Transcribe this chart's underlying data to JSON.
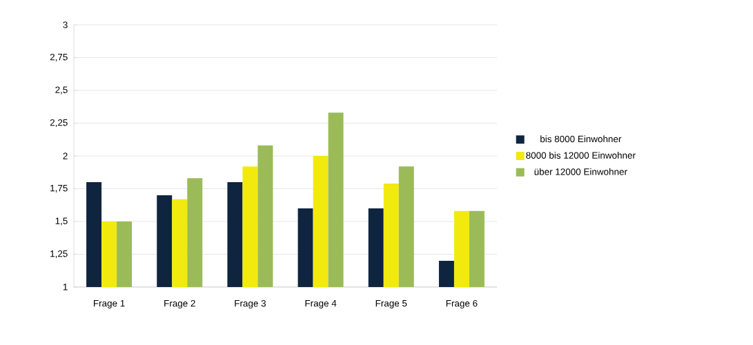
{
  "chart_data": {
    "type": "bar",
    "categories": [
      "Frage 1",
      "Frage 2",
      "Frage 3",
      "Frage 4",
      "Frage 5",
      "Frage 6"
    ],
    "series": [
      {
        "name": "bis 8000 Einwohner",
        "color": "#0f243e",
        "values": [
          1.8,
          1.7,
          1.8,
          1.6,
          1.6,
          1.2
        ]
      },
      {
        "name": "8000 bis 12000 Einwohner",
        "color": "#f2ea0f",
        "values": [
          1.5,
          1.67,
          1.92,
          2.0,
          1.79,
          1.58
        ]
      },
      {
        "name": "über 12000 Einwohner",
        "color": "#9bbb59",
        "values": [
          1.5,
          1.83,
          2.08,
          2.33,
          1.92,
          1.58
        ]
      }
    ],
    "ylim": [
      1,
      3
    ],
    "yticks": [
      1,
      {
        "value": 1.25,
        "label": "1,25"
      },
      {
        "value": 1.5,
        "label": "1,5"
      },
      {
        "value": 1.75,
        "label": "1,75"
      },
      2,
      {
        "value": 2.25,
        "label": "2,25"
      },
      {
        "value": 2.5,
        "label": "2,5"
      },
      {
        "value": 2.75,
        "label": "2,75"
      },
      3
    ],
    "grid": "y",
    "legend": "right"
  }
}
